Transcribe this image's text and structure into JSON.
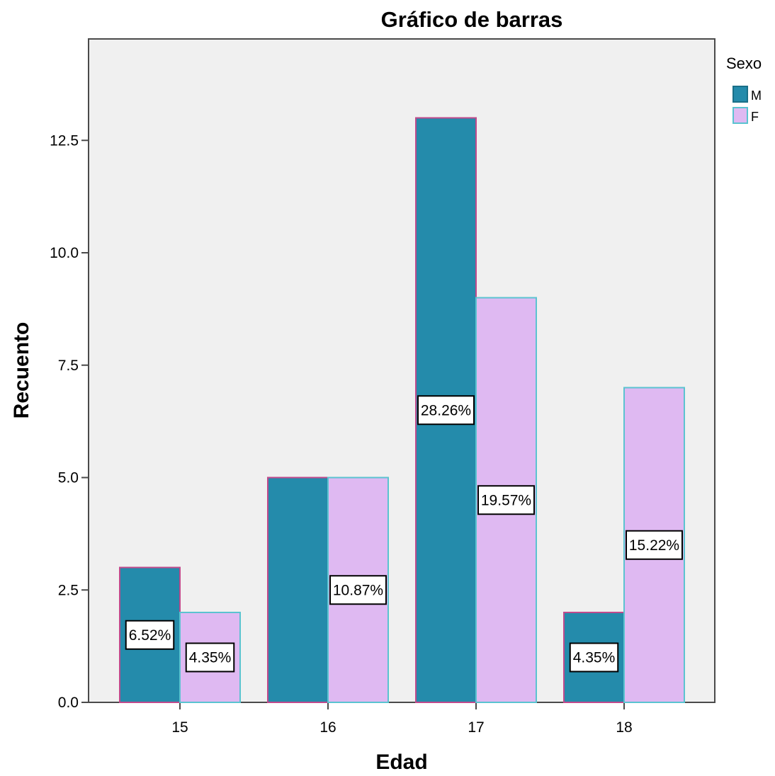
{
  "chart_data": {
    "type": "bar",
    "title": "Gráfico de barras",
    "xlabel": "Edad",
    "ylabel": "Recuento",
    "categories": [
      "15",
      "16",
      "17",
      "18"
    ],
    "series": [
      {
        "name": "M",
        "values": [
          3,
          5,
          13,
          2
        ],
        "data_labels": [
          "6.52%",
          "",
          "28.26%",
          "4.35%"
        ],
        "color": "#248BAB",
        "border": "#C04A8C"
      },
      {
        "name": "F",
        "values": [
          2,
          5,
          9,
          7
        ],
        "data_labels": [
          "4.35%",
          "10.87%",
          "19.57%",
          "15.22%"
        ],
        "color": "#DFB9F2",
        "border": "#5BC3D0"
      }
    ],
    "yticks": [
      0,
      2.5,
      5,
      7.5,
      10,
      12.5
    ],
    "ytick_labels": [
      "0.0",
      "2.5",
      "5.0",
      "7.5",
      "10.0",
      "12.5"
    ],
    "ylim": [
      0,
      14.75
    ],
    "legend": {
      "title": "Sexo",
      "position": "right"
    },
    "plot_background": "#F0F0F0",
    "grid": false
  }
}
